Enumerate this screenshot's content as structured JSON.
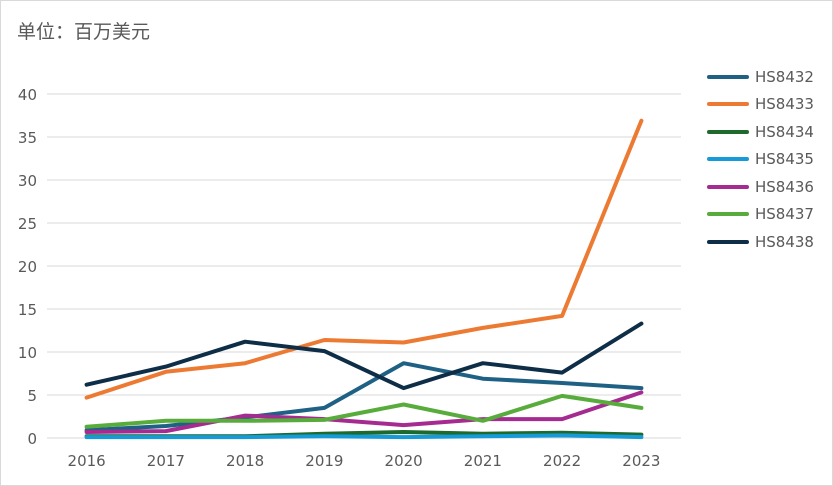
{
  "unit_label": "单位：百万美元",
  "chart_data": {
    "type": "line",
    "title": "",
    "xlabel": "",
    "ylabel": "",
    "x": [
      "2016",
      "2017",
      "2018",
      "2019",
      "2020",
      "2021",
      "2022",
      "2023"
    ],
    "ylim": [
      0,
      40
    ],
    "yticks": [
      "0",
      "5",
      "10",
      "15",
      "20",
      "25",
      "30",
      "35",
      "40"
    ],
    "grid": true,
    "legend_position": "right",
    "series": [
      {
        "name": "HS8432",
        "color": "#1f6185",
        "values": [
          0.9,
          1.4,
          2.4,
          3.5,
          8.7,
          6.9,
          6.4,
          5.8
        ]
      },
      {
        "name": "HS8433",
        "color": "#ed7a32",
        "values": [
          4.7,
          7.7,
          8.7,
          11.4,
          11.1,
          12.8,
          14.2,
          36.9
        ]
      },
      {
        "name": "HS8434",
        "color": "#1d6a2c",
        "values": [
          0.2,
          0.2,
          0.2,
          0.5,
          0.7,
          0.5,
          0.6,
          0.4
        ]
      },
      {
        "name": "HS8435",
        "color": "#169ad8",
        "values": [
          0.1,
          0.1,
          0.1,
          0.2,
          0.1,
          0.2,
          0.3,
          0.1
        ]
      },
      {
        "name": "HS8436",
        "color": "#a52b91",
        "values": [
          0.7,
          0.8,
          2.6,
          2.2,
          1.5,
          2.2,
          2.2,
          5.3
        ]
      },
      {
        "name": "HS8437",
        "color": "#58ac3c",
        "values": [
          1.3,
          2.0,
          2.0,
          2.1,
          3.9,
          2.0,
          4.9,
          3.5
        ]
      },
      {
        "name": "HS8438",
        "color": "#0e2e48",
        "values": [
          6.2,
          8.3,
          11.2,
          10.1,
          5.8,
          8.7,
          7.6,
          13.3
        ]
      }
    ]
  }
}
